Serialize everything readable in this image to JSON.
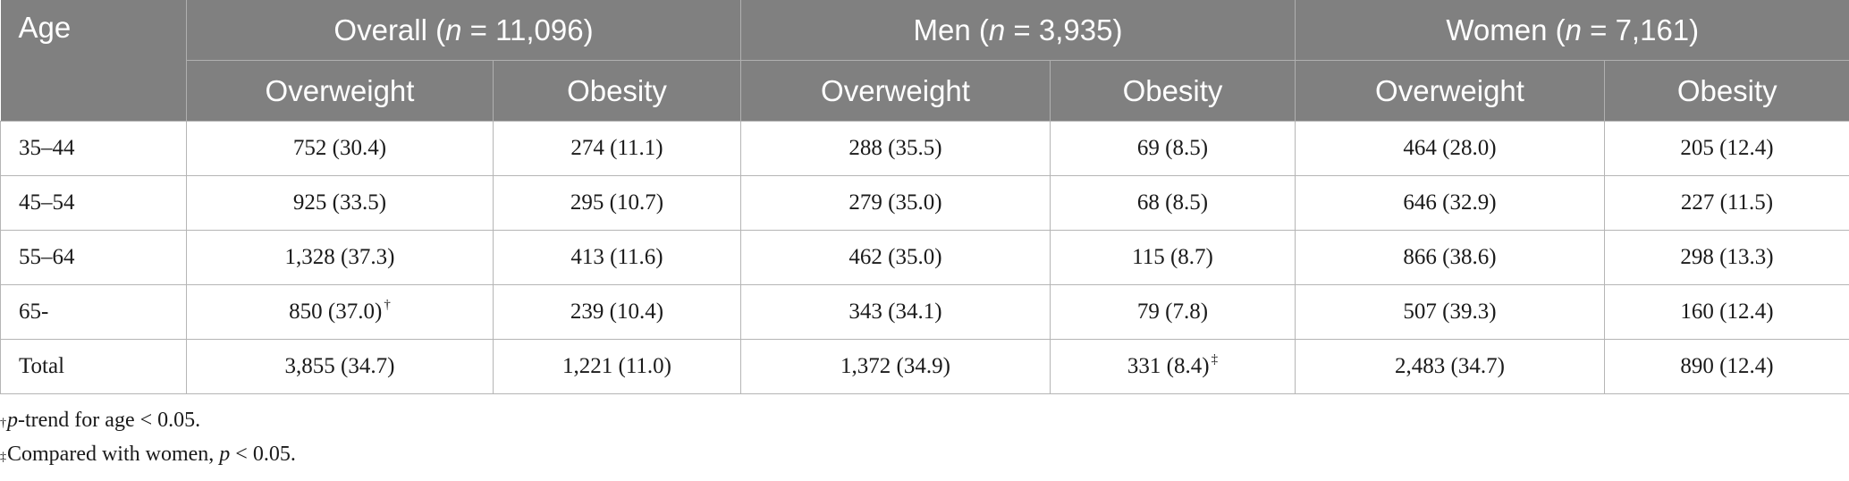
{
  "header": {
    "age": "Age",
    "groups": [
      {
        "label": "Overall",
        "n": "11,096"
      },
      {
        "label": "Men",
        "n": "3,935"
      },
      {
        "label": "Women",
        "n": "7,161"
      }
    ],
    "overweight": "Overweight",
    "obesity": "Obesity"
  },
  "rows": [
    {
      "age": "35–44",
      "cells": [
        {
          "v": "752 (30.4)",
          "m": ""
        },
        {
          "v": "274 (11.1)",
          "m": ""
        },
        {
          "v": "288 (35.5)",
          "m": ""
        },
        {
          "v": "69 (8.5)",
          "m": ""
        },
        {
          "v": "464 (28.0)",
          "m": ""
        },
        {
          "v": "205 (12.4)",
          "m": ""
        }
      ]
    },
    {
      "age": "45–54",
      "cells": [
        {
          "v": "925 (33.5)",
          "m": ""
        },
        {
          "v": "295 (10.7)",
          "m": ""
        },
        {
          "v": "279 (35.0)",
          "m": ""
        },
        {
          "v": "68 (8.5)",
          "m": ""
        },
        {
          "v": "646 (32.9)",
          "m": ""
        },
        {
          "v": "227 (11.5)",
          "m": ""
        }
      ]
    },
    {
      "age": "55–64",
      "cells": [
        {
          "v": "1,328 (37.3)",
          "m": ""
        },
        {
          "v": "413 (11.6)",
          "m": ""
        },
        {
          "v": "462 (35.0)",
          "m": ""
        },
        {
          "v": "115 (8.7)",
          "m": ""
        },
        {
          "v": "866 (38.6)",
          "m": ""
        },
        {
          "v": "298 (13.3)",
          "m": ""
        }
      ]
    },
    {
      "age": "65-",
      "cells": [
        {
          "v": "850 (37.0)",
          "m": "†"
        },
        {
          "v": "239 (10.4)",
          "m": ""
        },
        {
          "v": "343 (34.1)",
          "m": ""
        },
        {
          "v": "79 (7.8)",
          "m": ""
        },
        {
          "v": "507 (39.3)",
          "m": ""
        },
        {
          "v": "160 (12.4)",
          "m": ""
        }
      ]
    },
    {
      "age": "Total",
      "cells": [
        {
          "v": "3,855 (34.7)",
          "m": ""
        },
        {
          "v": "1,221 (11.0)",
          "m": ""
        },
        {
          "v": "1,372 (34.9)",
          "m": ""
        },
        {
          "v": "331 (8.4)",
          "m": "‡"
        },
        {
          "v": "2,483 (34.7)",
          "m": ""
        },
        {
          "v": "890 (12.4)",
          "m": ""
        }
      ]
    }
  ],
  "notes": [
    {
      "mark": "†",
      "italic": "p",
      "text": "-trend for age < 0.05."
    },
    {
      "mark": "‡",
      "pre": "Compared with women, ",
      "italic": "p",
      "text": " < 0.05."
    }
  ]
}
